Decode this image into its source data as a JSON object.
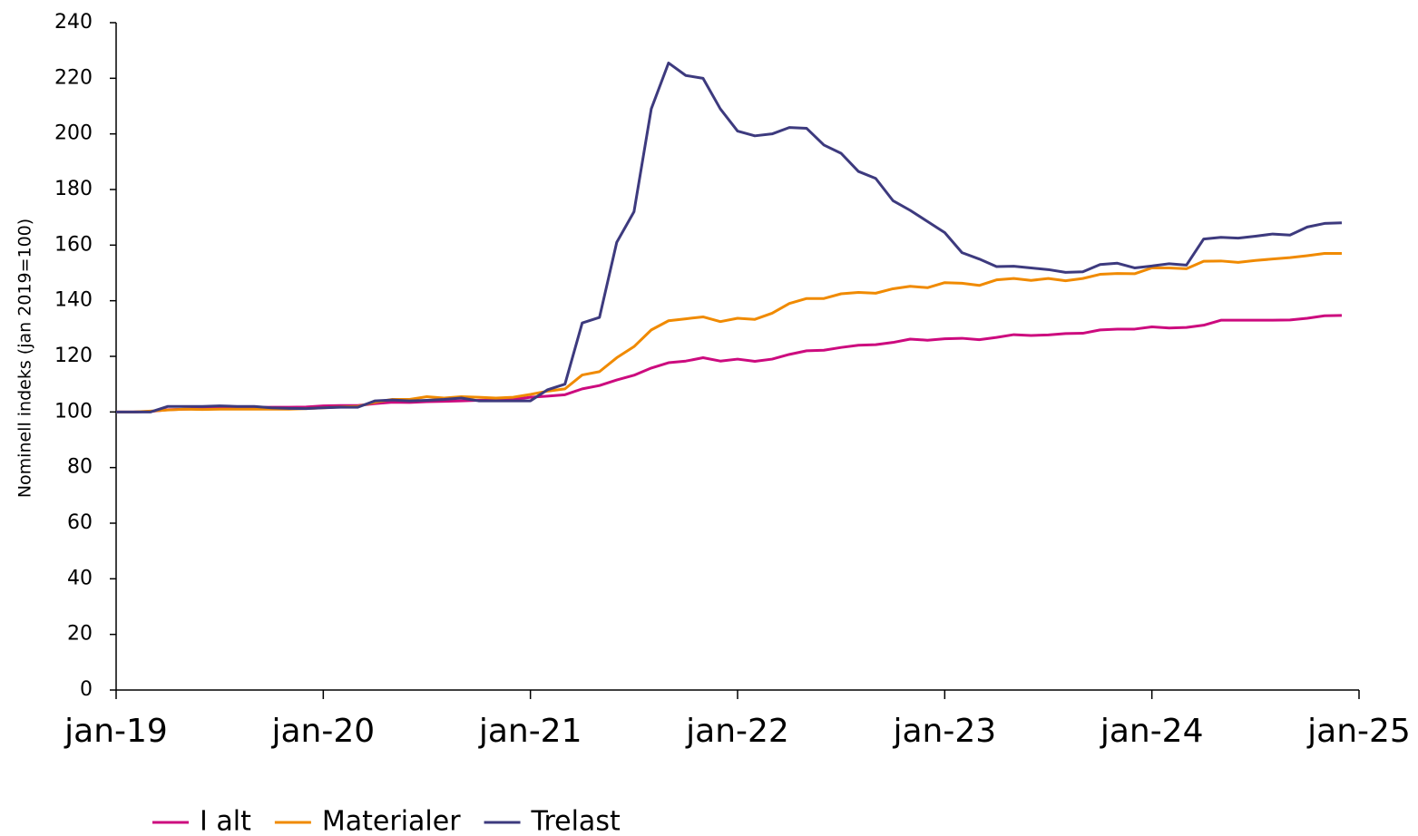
{
  "chart_data": {
    "type": "line",
    "ylabel": "Nominell indeks (jan 2019=100)",
    "categories": [
      "jan-19",
      null,
      null,
      null,
      null,
      null,
      null,
      null,
      null,
      null,
      null,
      null,
      "jan-20",
      null,
      null,
      null,
      null,
      null,
      null,
      null,
      null,
      null,
      null,
      null,
      "jan-21",
      null,
      null,
      null,
      null,
      null,
      null,
      null,
      null,
      null,
      null,
      null,
      "jan-22",
      null,
      null,
      null,
      null,
      null,
      null,
      null,
      null,
      null,
      null,
      null,
      "jan-23",
      null,
      null,
      null,
      null,
      null,
      null,
      null,
      null,
      null,
      null,
      null,
      "jan-24",
      null,
      null,
      null,
      null,
      null,
      null,
      null,
      null,
      null,
      null,
      null,
      "jan-25"
    ],
    "series": [
      {
        "name": "I alt",
        "color": "#cc0a7e",
        "values": [
          100,
          100,
          100.2,
          100.8,
          101,
          101.2,
          101.3,
          101.3,
          101.6,
          101.7,
          101.7,
          101.8,
          102.2,
          102.3,
          102.3,
          103,
          103.5,
          103.4,
          103.7,
          103.8,
          104,
          104.2,
          104.3,
          104.5,
          105.3,
          105.7,
          106.2,
          108.3,
          109.5,
          111.5,
          113.2,
          115.8,
          117.7,
          118.3,
          119.5,
          118.3,
          119,
          118.2,
          119,
          120.7,
          122,
          122.2,
          123.2,
          124,
          124.2,
          125,
          126.2,
          125.8,
          126.3,
          126.5,
          126,
          126.8,
          127.8,
          127.5,
          127.7,
          128.2,
          128.3,
          129.5,
          129.8,
          129.8,
          130.6,
          130.2,
          130.4,
          131.2,
          133,
          133,
          133,
          133,
          133.1,
          133.7,
          134.6,
          134.7,
          null
        ]
      },
      {
        "name": "Materialer",
        "color": "#f08a00",
        "values": [
          100,
          100,
          100.3,
          100.7,
          101,
          100.9,
          101,
          101,
          101,
          101,
          101,
          101.2,
          101.5,
          101.8,
          102,
          103.5,
          104.5,
          104.5,
          105.5,
          105,
          105.5,
          105.3,
          105,
          105.3,
          106.3,
          107.5,
          108.3,
          113.3,
          114.5,
          119.5,
          123.5,
          129.5,
          132.8,
          133.5,
          134.2,
          132.5,
          133.7,
          133.3,
          135.5,
          139,
          140.8,
          140.8,
          142.5,
          143,
          142.7,
          144.3,
          145.2,
          144.7,
          146.5,
          146.3,
          145.5,
          147.5,
          148,
          147.3,
          148,
          147.2,
          148,
          149.5,
          149.8,
          149.7,
          151.8,
          151.8,
          151.5,
          154.2,
          154.3,
          153.8,
          154.5,
          155,
          155.5,
          156.2,
          157,
          157,
          null
        ]
      },
      {
        "name": "Trelast",
        "color": "#3d3a7e",
        "values": [
          100,
          100,
          100,
          102,
          102,
          102,
          102.2,
          102,
          102,
          101.5,
          101.3,
          101.2,
          101.5,
          101.7,
          101.7,
          104,
          104.3,
          104,
          104.2,
          104.5,
          105,
          104,
          104,
          104,
          104,
          108,
          110,
          132,
          134,
          161,
          172,
          209,
          225.5,
          221,
          220,
          209,
          201,
          199.3,
          200,
          202.3,
          202,
          196,
          193,
          186.5,
          184,
          176,
          172.5,
          168.5,
          164.5,
          157.3,
          155,
          152.3,
          152.4,
          151.8,
          151.2,
          150.2,
          150.4,
          153,
          153.5,
          151.8,
          152.5,
          153.3,
          152.8,
          162.2,
          162.8,
          162.5,
          163.2,
          164,
          163.6,
          166.5,
          167.8,
          168,
          null
        ]
      }
    ],
    "ylim": [
      0,
      240
    ],
    "yticks": [
      0,
      20,
      40,
      60,
      80,
      100,
      120,
      140,
      160,
      180,
      200,
      220,
      240
    ],
    "grid": false,
    "legend": "bottom-left"
  }
}
